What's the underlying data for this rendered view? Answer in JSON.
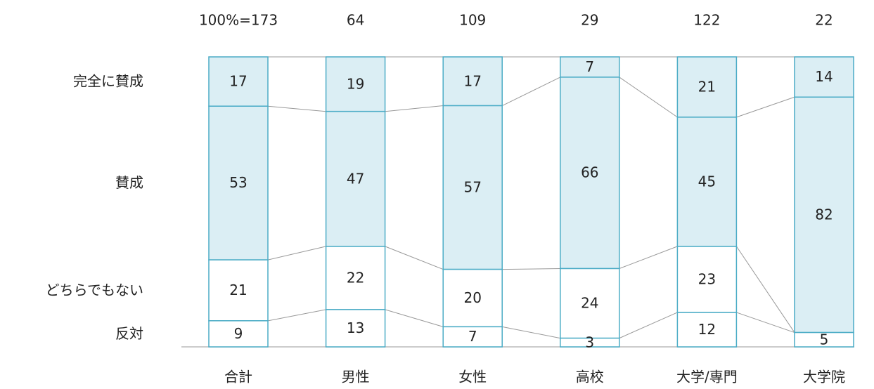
{
  "chart_data": {
    "type": "stacked_percent_bar",
    "categories": [
      "合計",
      "男性",
      "女性",
      "高校",
      "大学/専門",
      "大学院"
    ],
    "totals": [
      {
        "value": 173,
        "label": "100%=173"
      },
      64,
      109,
      29,
      122,
      22
    ],
    "series": [
      {
        "name": "完全に賛成",
        "color": "#dbeef4",
        "values": [
          17,
          19,
          17,
          7,
          21,
          14
        ]
      },
      {
        "name": "賛成",
        "color": "#dbeef4",
        "values": [
          53,
          47,
          57,
          66,
          45,
          82
        ]
      },
      {
        "name": "どちらでもない",
        "color": "#ffffff",
        "values": [
          21,
          22,
          20,
          24,
          23,
          null
        ]
      },
      {
        "name": "反対",
        "color": "#ffffff",
        "values": [
          9,
          13,
          7,
          3,
          12,
          5
        ]
      }
    ]
  }
}
